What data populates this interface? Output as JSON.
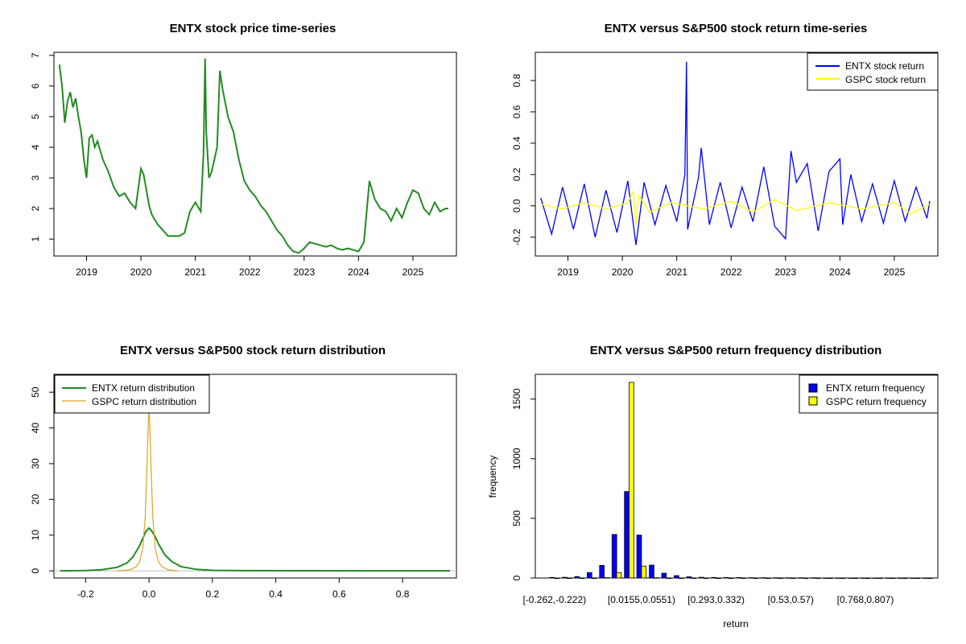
{
  "colors": {
    "entx_price": "#228B22",
    "entx_return": "#0000FF",
    "gspc_return": "#FFFF00",
    "entx_density": "#228B22",
    "gspc_density": "#DAA520",
    "entx_hist": "#0000FF",
    "gspc_hist": "#FFFF00",
    "frame": "#000000"
  },
  "chart_data": [
    {
      "id": "price",
      "type": "line",
      "title": "ENTX stock price time-series",
      "xlabel": "",
      "ylabel": "",
      "xlim": [
        2018.4,
        2025.8
      ],
      "ylim": [
        0.45,
        7.1
      ],
      "x_ticks": [
        2019,
        2020,
        2021,
        2022,
        2023,
        2024,
        2025
      ],
      "x_tick_labels": [
        "2019",
        "2020",
        "2021",
        "2022",
        "2023",
        "2024",
        "2025"
      ],
      "y_ticks": [
        1,
        2,
        3,
        4,
        5,
        6,
        7
      ],
      "y_tick_labels": [
        "1",
        "2",
        "3",
        "4",
        "5",
        "6",
        "7"
      ],
      "series": [
        {
          "name": "ENTX price",
          "x": [
            2018.5,
            2018.55,
            2018.6,
            2018.65,
            2018.7,
            2018.75,
            2018.8,
            2018.85,
            2018.9,
            2018.95,
            2019.0,
            2019.05,
            2019.1,
            2019.15,
            2019.2,
            2019.3,
            2019.4,
            2019.5,
            2019.6,
            2019.7,
            2019.8,
            2019.9,
            2020.0,
            2020.05,
            2020.1,
            2020.15,
            2020.2,
            2020.3,
            2020.4,
            2020.5,
            2020.6,
            2020.7,
            2020.8,
            2020.9,
            2021.0,
            2021.1,
            2021.15,
            2021.18,
            2021.2,
            2021.25,
            2021.3,
            2021.4,
            2021.45,
            2021.5,
            2021.6,
            2021.7,
            2021.8,
            2021.9,
            2022.0,
            2022.1,
            2022.2,
            2022.3,
            2022.4,
            2022.5,
            2022.6,
            2022.7,
            2022.8,
            2022.9,
            2023.0,
            2023.1,
            2023.2,
            2023.3,
            2023.4,
            2023.5,
            2023.6,
            2023.7,
            2023.8,
            2023.9,
            2024.0,
            2024.1,
            2024.2,
            2024.3,
            2024.4,
            2024.5,
            2024.6,
            2024.7,
            2024.8,
            2024.9,
            2025.0,
            2025.1,
            2025.2,
            2025.3,
            2025.4,
            2025.5,
            2025.6,
            2025.65
          ],
          "y": [
            6.7,
            6.0,
            4.8,
            5.5,
            5.8,
            5.3,
            5.6,
            5.0,
            4.5,
            3.6,
            3.0,
            4.3,
            4.4,
            4.0,
            4.2,
            3.6,
            3.2,
            2.7,
            2.4,
            2.5,
            2.2,
            2.0,
            3.3,
            3.1,
            2.6,
            2.1,
            1.8,
            1.5,
            1.3,
            1.1,
            1.1,
            1.1,
            1.2,
            1.9,
            2.2,
            1.9,
            3.8,
            6.9,
            4.5,
            3.0,
            3.2,
            4.0,
            6.5,
            5.9,
            5.0,
            4.5,
            3.6,
            2.9,
            2.6,
            2.4,
            2.1,
            1.9,
            1.6,
            1.3,
            1.1,
            0.8,
            0.6,
            0.55,
            0.7,
            0.9,
            0.85,
            0.8,
            0.75,
            0.8,
            0.7,
            0.65,
            0.7,
            0.65,
            0.6,
            0.9,
            2.9,
            2.3,
            2.0,
            1.9,
            1.6,
            2.0,
            1.7,
            2.2,
            2.6,
            2.5,
            2.0,
            1.8,
            2.2,
            1.9,
            2.0,
            2.0
          ]
        }
      ]
    },
    {
      "id": "returns",
      "type": "line",
      "title": "ENTX versus S&P500 stock return time-series",
      "xlabel": "",
      "ylabel": "",
      "xlim": [
        2018.4,
        2025.8
      ],
      "ylim": [
        -0.32,
        0.98
      ],
      "x_ticks": [
        2019,
        2020,
        2021,
        2022,
        2023,
        2024,
        2025
      ],
      "x_tick_labels": [
        "2019",
        "2020",
        "2021",
        "2022",
        "2023",
        "2024",
        "2025"
      ],
      "y_ticks": [
        -0.2,
        0.0,
        0.2,
        0.4,
        0.6,
        0.8
      ],
      "y_tick_labels": [
        "-0.2",
        "0.0",
        "0.2",
        "0.4",
        "0.6",
        "0.8"
      ],
      "legend_position": "top-right",
      "series": [
        {
          "name": "ENTX stock return",
          "x": [
            2018.5,
            2018.7,
            2018.9,
            2019.1,
            2019.3,
            2019.5,
            2019.7,
            2019.9,
            2020.1,
            2020.25,
            2020.4,
            2020.6,
            2020.8,
            2021.0,
            2021.15,
            2021.18,
            2021.2,
            2021.4,
            2021.45,
            2021.6,
            2021.8,
            2022.0,
            2022.2,
            2022.4,
            2022.6,
            2022.8,
            2023.0,
            2023.1,
            2023.2,
            2023.4,
            2023.6,
            2023.8,
            2024.0,
            2024.05,
            2024.2,
            2024.4,
            2024.6,
            2024.8,
            2025.0,
            2025.2,
            2025.4,
            2025.6,
            2025.65
          ],
          "y": [
            0.05,
            -0.18,
            0.12,
            -0.15,
            0.14,
            -0.2,
            0.1,
            -0.17,
            0.16,
            -0.25,
            0.15,
            -0.12,
            0.13,
            -0.1,
            0.2,
            0.92,
            -0.15,
            0.18,
            0.37,
            -0.12,
            0.15,
            -0.14,
            0.12,
            -0.1,
            0.25,
            -0.13,
            -0.21,
            0.35,
            0.15,
            0.27,
            -0.16,
            0.22,
            0.3,
            -0.12,
            0.2,
            -0.1,
            0.14,
            -0.11,
            0.16,
            -0.1,
            0.12,
            -0.08,
            0.03
          ]
        },
        {
          "name": "GSPC stock return",
          "x": [
            2018.5,
            2018.9,
            2019.3,
            2019.7,
            2020.1,
            2020.2,
            2020.25,
            2020.3,
            2020.5,
            2020.9,
            2021.5,
            2022.0,
            2022.4,
            2022.8,
            2023.2,
            2023.8,
            2024.4,
            2025.0,
            2025.3,
            2025.65
          ],
          "y": [
            0.01,
            -0.02,
            0.02,
            -0.02,
            0.02,
            0.09,
            -0.12,
            0.07,
            -0.04,
            0.02,
            -0.02,
            0.03,
            -0.04,
            0.04,
            -0.03,
            0.02,
            -0.02,
            0.02,
            -0.05,
            0.01
          ]
        }
      ]
    },
    {
      "id": "density",
      "type": "line",
      "title": "ENTX versus S&P500 stock return distribution",
      "xlabel": "",
      "ylabel": "",
      "xlim": [
        -0.3,
        0.97
      ],
      "ylim": [
        -2,
        55
      ],
      "x_ticks": [
        -0.2,
        0.0,
        0.2,
        0.4,
        0.6,
        0.8
      ],
      "x_tick_labels": [
        "-0.2",
        "0.0",
        "0.2",
        "0.4",
        "0.6",
        "0.8"
      ],
      "y_ticks": [
        0,
        10,
        20,
        30,
        40,
        50
      ],
      "y_tick_labels": [
        "0",
        "10",
        "20",
        "30",
        "40",
        "50"
      ],
      "legend_position": "top-left",
      "series": [
        {
          "name": "ENTX return distribution",
          "x": [
            -0.28,
            -0.2,
            -0.15,
            -0.1,
            -0.07,
            -0.05,
            -0.03,
            -0.02,
            -0.01,
            0.0,
            0.01,
            0.02,
            0.03,
            0.05,
            0.07,
            0.1,
            0.15,
            0.2,
            0.3,
            0.5,
            0.7,
            0.95
          ],
          "y": [
            0.0,
            0.1,
            0.3,
            1.0,
            2.2,
            4.0,
            7.0,
            9.0,
            11.0,
            12.0,
            11.0,
            9.5,
            7.5,
            4.5,
            2.7,
            1.2,
            0.4,
            0.15,
            0.05,
            0.02,
            0.01,
            0.0
          ]
        },
        {
          "name": "GSPC return distribution",
          "x": [
            -0.1,
            -0.06,
            -0.04,
            -0.03,
            -0.02,
            -0.012,
            -0.006,
            -0.002,
            0.0,
            0.002,
            0.006,
            0.012,
            0.02,
            0.03,
            0.04,
            0.06,
            0.09
          ],
          "y": [
            0.0,
            0.3,
            1.2,
            2.5,
            6.0,
            15.0,
            30.0,
            42.0,
            45.0,
            42.0,
            30.0,
            15.0,
            6.0,
            2.5,
            1.2,
            0.3,
            0.0
          ]
        }
      ]
    },
    {
      "id": "histogram",
      "type": "bar",
      "title": "ENTX versus S&P500 return frequency distribution",
      "xlabel": "return",
      "ylabel": "frequency",
      "ylim": [
        0,
        1640
      ],
      "y_ticks": [
        0,
        500,
        1000,
        1500
      ],
      "y_tick_labels": [
        "0",
        "500",
        "1000",
        "1500"
      ],
      "category_tick_labels": [
        {
          "index": 0,
          "label": "[-0.262,-0.222)"
        },
        {
          "index": 7,
          "label": "[0.0155,0.0551)"
        },
        {
          "index": 13,
          "label": "[0.293,0.332)"
        },
        {
          "index": 19,
          "label": "[0.53,0.57)"
        },
        {
          "index": 25,
          "label": "[0.768,0.807)"
        }
      ],
      "legend_position": "top-right",
      "series": [
        {
          "name": "ENTX return frequency",
          "values": [
            5,
            6,
            12,
            45,
            105,
            365,
            725,
            360,
            108,
            40,
            20,
            10,
            6,
            5,
            4,
            4,
            3,
            3,
            2,
            2,
            2,
            2,
            1,
            1,
            1,
            1,
            1,
            1,
            1,
            1,
            1
          ]
        },
        {
          "name": "GSPC return frequency",
          "values": [
            0,
            0,
            0,
            0,
            3,
            45,
            1640,
            100,
            2,
            0,
            0,
            0,
            0,
            0,
            0,
            0,
            0,
            0,
            0,
            0,
            0,
            0,
            0,
            0,
            0,
            0,
            0,
            0,
            0,
            0,
            0
          ]
        }
      ]
    }
  ]
}
